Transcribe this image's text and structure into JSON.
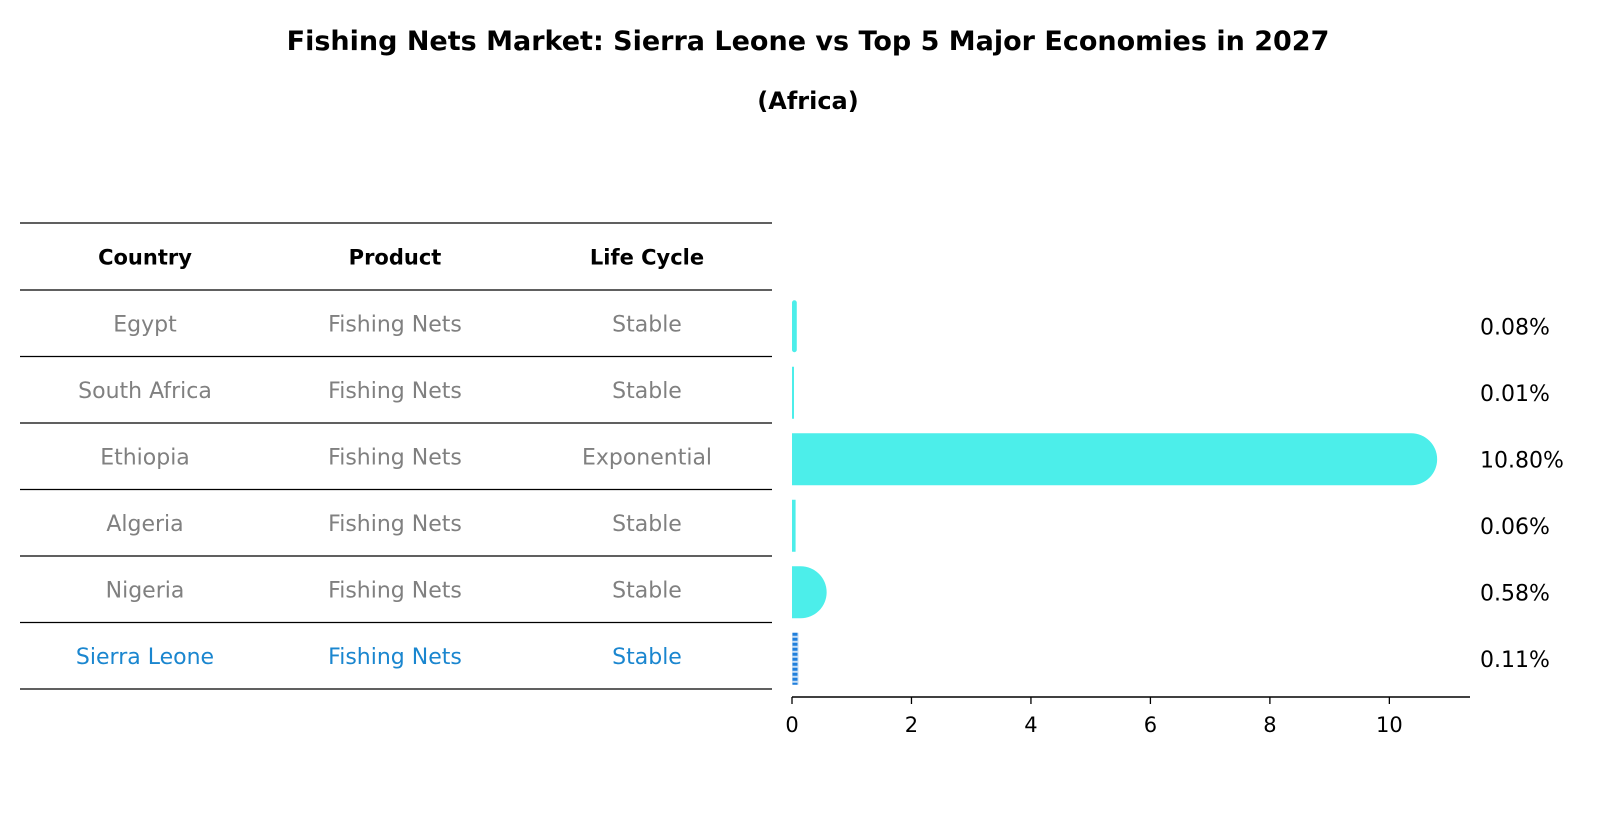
{
  "chart_data": {
    "type": "bar",
    "orientation": "horizontal",
    "title": "Fishing Nets Market: Sierra Leone vs Top 5 Major Economies in 2027",
    "subtitle": "(Africa)",
    "table": {
      "columns": [
        "Country",
        "Product",
        "Life Cycle"
      ],
      "rows": [
        {
          "country": "Egypt",
          "product": "Fishing Nets",
          "life_cycle": "Stable",
          "highlight": false
        },
        {
          "country": "South Africa",
          "product": "Fishing Nets",
          "life_cycle": "Stable",
          "highlight": false
        },
        {
          "country": "Ethiopia",
          "product": "Fishing Nets",
          "life_cycle": "Exponential",
          "highlight": false
        },
        {
          "country": "Algeria",
          "product": "Fishing Nets",
          "life_cycle": "Stable",
          "highlight": false
        },
        {
          "country": "Nigeria",
          "product": "Fishing Nets",
          "life_cycle": "Stable",
          "highlight": false
        },
        {
          "country": "Sierra Leone",
          "product": "Fishing Nets",
          "life_cycle": "Stable",
          "highlight": true
        }
      ]
    },
    "categories": [
      "Egypt",
      "South Africa",
      "Ethiopia",
      "Algeria",
      "Nigeria",
      "Sierra Leone"
    ],
    "values": [
      0.08,
      0.01,
      10.8,
      0.06,
      0.58,
      0.11
    ],
    "value_labels": [
      "0.08%",
      "0.01%",
      "10.80%",
      "0.06%",
      "0.58%",
      "0.11%"
    ],
    "xticks": [
      0,
      2,
      4,
      6,
      8,
      10
    ],
    "xlim": [
      0,
      11.35
    ],
    "grid": false,
    "colors": {
      "bar": "#4ceeea",
      "highlight_bar": "#1f7fdc",
      "muted_text": "#808080",
      "highlight_text": "#1a86cf",
      "rule": "#000000"
    }
  }
}
